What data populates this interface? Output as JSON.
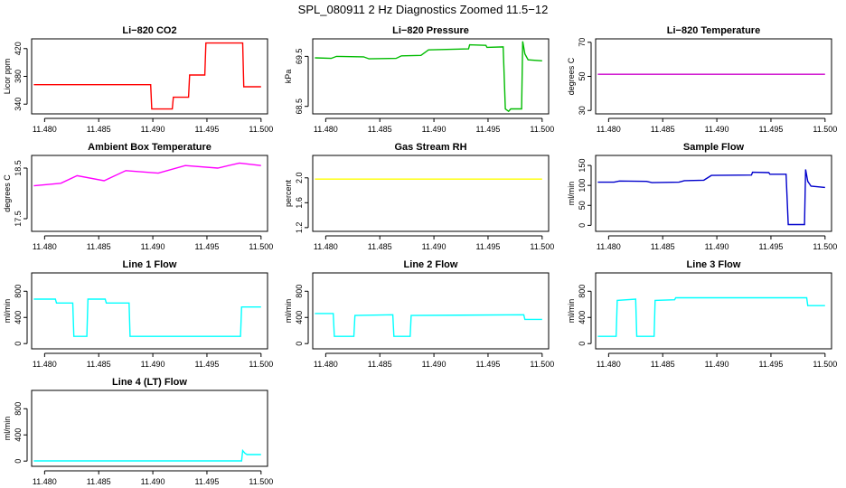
{
  "figure": {
    "title": "SPL_080911  2 Hz Diagnostics Zoomed 11.5−12"
  },
  "chart_data": [
    {
      "type": "line",
      "title": "Li−820 CO2",
      "ylabel": "Licor ppm",
      "color": "#ff0000",
      "xlim": [
        11.4788,
        11.5006
      ],
      "ylim": [
        326,
        434
      ],
      "xticks": [
        "11.480",
        "11.485",
        "11.490",
        "11.495",
        "11.500"
      ],
      "xtick_values": [
        11.48,
        11.485,
        11.49,
        11.495,
        11.5
      ],
      "yticks": [
        "340",
        "380",
        "420"
      ],
      "ytick_values": [
        340,
        380,
        420
      ],
      "series": [
        {
          "x": [
            11.479,
            11.4898,
            11.4899,
            11.4918,
            11.4919,
            11.4933,
            11.4934,
            11.4948,
            11.4949,
            11.4983,
            11.4984,
            11.5
          ],
          "y": [
            368,
            368,
            333,
            333,
            350,
            350,
            382,
            382,
            428,
            428,
            365,
            365
          ]
        }
      ]
    },
    {
      "type": "line",
      "title": "Li−820 Pressure",
      "ylabel": "kPa",
      "color": "#00bb00",
      "xlim": [
        11.4788,
        11.5006
      ],
      "ylim": [
        68.35,
        69.85
      ],
      "xticks": [
        "11.480",
        "11.485",
        "11.490",
        "11.495",
        "11.500"
      ],
      "xtick_values": [
        11.48,
        11.485,
        11.49,
        11.495,
        11.5
      ],
      "yticks": [
        "68.5",
        "69.5"
      ],
      "ytick_values": [
        68.5,
        69.5
      ],
      "series": [
        {
          "x": [
            11.479,
            11.4805,
            11.481,
            11.4835,
            11.484,
            11.4865,
            11.487,
            11.4888,
            11.4895,
            11.4932,
            11.4933,
            11.4948,
            11.4949,
            11.4964,
            11.4966,
            11.4969,
            11.4971,
            11.4981,
            11.4982,
            11.4984,
            11.4987,
            11.5
          ],
          "y": [
            69.47,
            69.46,
            69.5,
            69.49,
            69.45,
            69.46,
            69.51,
            69.52,
            69.63,
            69.65,
            69.73,
            69.72,
            69.68,
            69.69,
            68.45,
            68.4,
            68.45,
            68.45,
            69.8,
            69.55,
            69.43,
            69.41
          ]
        }
      ]
    },
    {
      "type": "line",
      "title": "Li−820 Temperature",
      "ylabel": "degrees C",
      "color": "#cc00cc",
      "xlim": [
        11.4788,
        11.5006
      ],
      "ylim": [
        28,
        72
      ],
      "xticks": [
        "11.480",
        "11.485",
        "11.490",
        "11.495",
        "11.500"
      ],
      "xtick_values": [
        11.48,
        11.485,
        11.49,
        11.495,
        11.5
      ],
      "yticks": [
        "30",
        "50",
        "70"
      ],
      "ytick_values": [
        30,
        50,
        70
      ],
      "series": [
        {
          "x": [
            11.479,
            11.5
          ],
          "y": [
            51.2,
            51.2
          ]
        }
      ]
    },
    {
      "type": "line",
      "title": "Ambient Box Temperature",
      "ylabel": "degrees C",
      "color": "#ff00ff",
      "xlim": [
        11.4788,
        11.5006
      ],
      "ylim": [
        17.25,
        18.75
      ],
      "xticks": [
        "11.480",
        "11.485",
        "11.490",
        "11.495",
        "11.500"
      ],
      "xtick_values": [
        11.48,
        11.485,
        11.49,
        11.495,
        11.5
      ],
      "yticks": [
        "17.5",
        "18.5"
      ],
      "ytick_values": [
        17.5,
        18.5
      ],
      "series": [
        {
          "x": [
            11.479,
            11.4815,
            11.483,
            11.4855,
            11.4875,
            11.4905,
            11.493,
            11.496,
            11.498,
            11.5
          ],
          "y": [
            18.15,
            18.2,
            18.35,
            18.25,
            18.45,
            18.4,
            18.55,
            18.5,
            18.6,
            18.55
          ]
        }
      ]
    },
    {
      "type": "line",
      "title": "Gas Stream RH",
      "ylabel": "percent",
      "color": "#ffff00",
      "xlim": [
        11.4788,
        11.5006
      ],
      "ylim": [
        1.14,
        2.36
      ],
      "xticks": [
        "11.480",
        "11.485",
        "11.490",
        "11.495",
        "11.500"
      ],
      "xtick_values": [
        11.48,
        11.485,
        11.49,
        11.495,
        11.5
      ],
      "yticks": [
        "1.2",
        "1.6",
        "2.0"
      ],
      "ytick_values": [
        1.2,
        1.6,
        2.0
      ],
      "series": [
        {
          "x": [
            11.479,
            11.5
          ],
          "y": [
            1.98,
            1.98
          ]
        }
      ]
    },
    {
      "type": "line",
      "title": "Sample Flow",
      "ylabel": "ml/min",
      "color": "#0000cc",
      "xlim": [
        11.4788,
        11.5006
      ],
      "ylim": [
        -15,
        175
      ],
      "xticks": [
        "11.480",
        "11.485",
        "11.490",
        "11.495",
        "11.500"
      ],
      "xtick_values": [
        11.48,
        11.485,
        11.49,
        11.495,
        11.5
      ],
      "yticks": [
        "0",
        "50",
        "100",
        "150"
      ],
      "ytick_values": [
        0,
        50,
        100,
        150
      ],
      "series": [
        {
          "x": [
            11.479,
            11.4805,
            11.481,
            11.4835,
            11.484,
            11.4865,
            11.487,
            11.4888,
            11.4895,
            11.4932,
            11.4933,
            11.4948,
            11.4949,
            11.4964,
            11.4966,
            11.4981,
            11.4982,
            11.4984,
            11.4987,
            11.5
          ],
          "y": [
            108,
            108,
            111,
            110,
            107,
            108,
            112,
            113,
            125,
            126,
            133,
            132,
            128,
            128,
            2,
            2,
            140,
            110,
            98,
            95
          ]
        }
      ]
    },
    {
      "type": "line",
      "title": "Line 1 Flow",
      "ylabel": "ml/min",
      "color": "#00ffff",
      "xlim": [
        11.4788,
        11.5006
      ],
      "ylim": [
        -80,
        1080
      ],
      "xticks": [
        "11.480",
        "11.485",
        "11.490",
        "11.495",
        "11.500"
      ],
      "xtick_values": [
        11.48,
        11.485,
        11.49,
        11.495,
        11.5
      ],
      "yticks": [
        "0",
        "400",
        "800"
      ],
      "ytick_values": [
        0,
        400,
        800
      ],
      "series": [
        {
          "x": [
            11.479,
            11.481,
            11.4811,
            11.4826,
            11.4827,
            11.4839,
            11.484,
            11.4856,
            11.4857,
            11.4878,
            11.4879,
            11.4981,
            11.4982,
            11.5
          ],
          "y": [
            680,
            680,
            620,
            620,
            110,
            110,
            680,
            680,
            620,
            620,
            110,
            110,
            560,
            560
          ]
        }
      ]
    },
    {
      "type": "line",
      "title": "Line 2 Flow",
      "ylabel": "ml/min",
      "color": "#00ffff",
      "xlim": [
        11.4788,
        11.5006
      ],
      "ylim": [
        -80,
        1080
      ],
      "xticks": [
        "11.480",
        "11.485",
        "11.490",
        "11.495",
        "11.500"
      ],
      "xtick_values": [
        11.48,
        11.485,
        11.49,
        11.495,
        11.5
      ],
      "yticks": [
        "0",
        "400",
        "800"
      ],
      "ytick_values": [
        0,
        400,
        800
      ],
      "series": [
        {
          "x": [
            11.479,
            11.4807,
            11.4808,
            11.4826,
            11.4827,
            11.4862,
            11.4863,
            11.4878,
            11.4879,
            11.4983,
            11.4984,
            11.5
          ],
          "y": [
            460,
            460,
            110,
            110,
            430,
            440,
            110,
            110,
            430,
            440,
            370,
            370
          ]
        }
      ]
    },
    {
      "type": "line",
      "title": "Line 3 Flow",
      "ylabel": "ml/min",
      "color": "#00ffff",
      "xlim": [
        11.4788,
        11.5006
      ],
      "ylim": [
        -80,
        1080
      ],
      "xticks": [
        "11.480",
        "11.485",
        "11.490",
        "11.495",
        "11.500"
      ],
      "xtick_values": [
        11.48,
        11.485,
        11.49,
        11.495,
        11.5
      ],
      "yticks": [
        "0",
        "400",
        "800"
      ],
      "ytick_values": [
        0,
        400,
        800
      ],
      "series": [
        {
          "x": [
            11.479,
            11.4807,
            11.4808,
            11.4825,
            11.4826,
            11.4842,
            11.4843,
            11.4861,
            11.4862,
            11.4983,
            11.4984,
            11.5
          ],
          "y": [
            110,
            110,
            660,
            680,
            110,
            110,
            660,
            670,
            700,
            700,
            580,
            580
          ]
        }
      ]
    },
    {
      "type": "line",
      "title": "Line 4 (LT) Flow",
      "ylabel": "ml/min",
      "color": "#00ffff",
      "xlim": [
        11.4788,
        11.5006
      ],
      "ylim": [
        -80,
        1080
      ],
      "xticks": [
        "11.480",
        "11.485",
        "11.490",
        "11.495",
        "11.500"
      ],
      "xtick_values": [
        11.48,
        11.485,
        11.49,
        11.495,
        11.5
      ],
      "yticks": [
        "0",
        "400",
        "800"
      ],
      "ytick_values": [
        0,
        400,
        800
      ],
      "series": [
        {
          "x": [
            11.479,
            11.4982,
            11.4983,
            11.4985,
            11.4987,
            11.5
          ],
          "y": [
            3,
            3,
            160,
            120,
            100,
            100
          ]
        }
      ]
    }
  ]
}
